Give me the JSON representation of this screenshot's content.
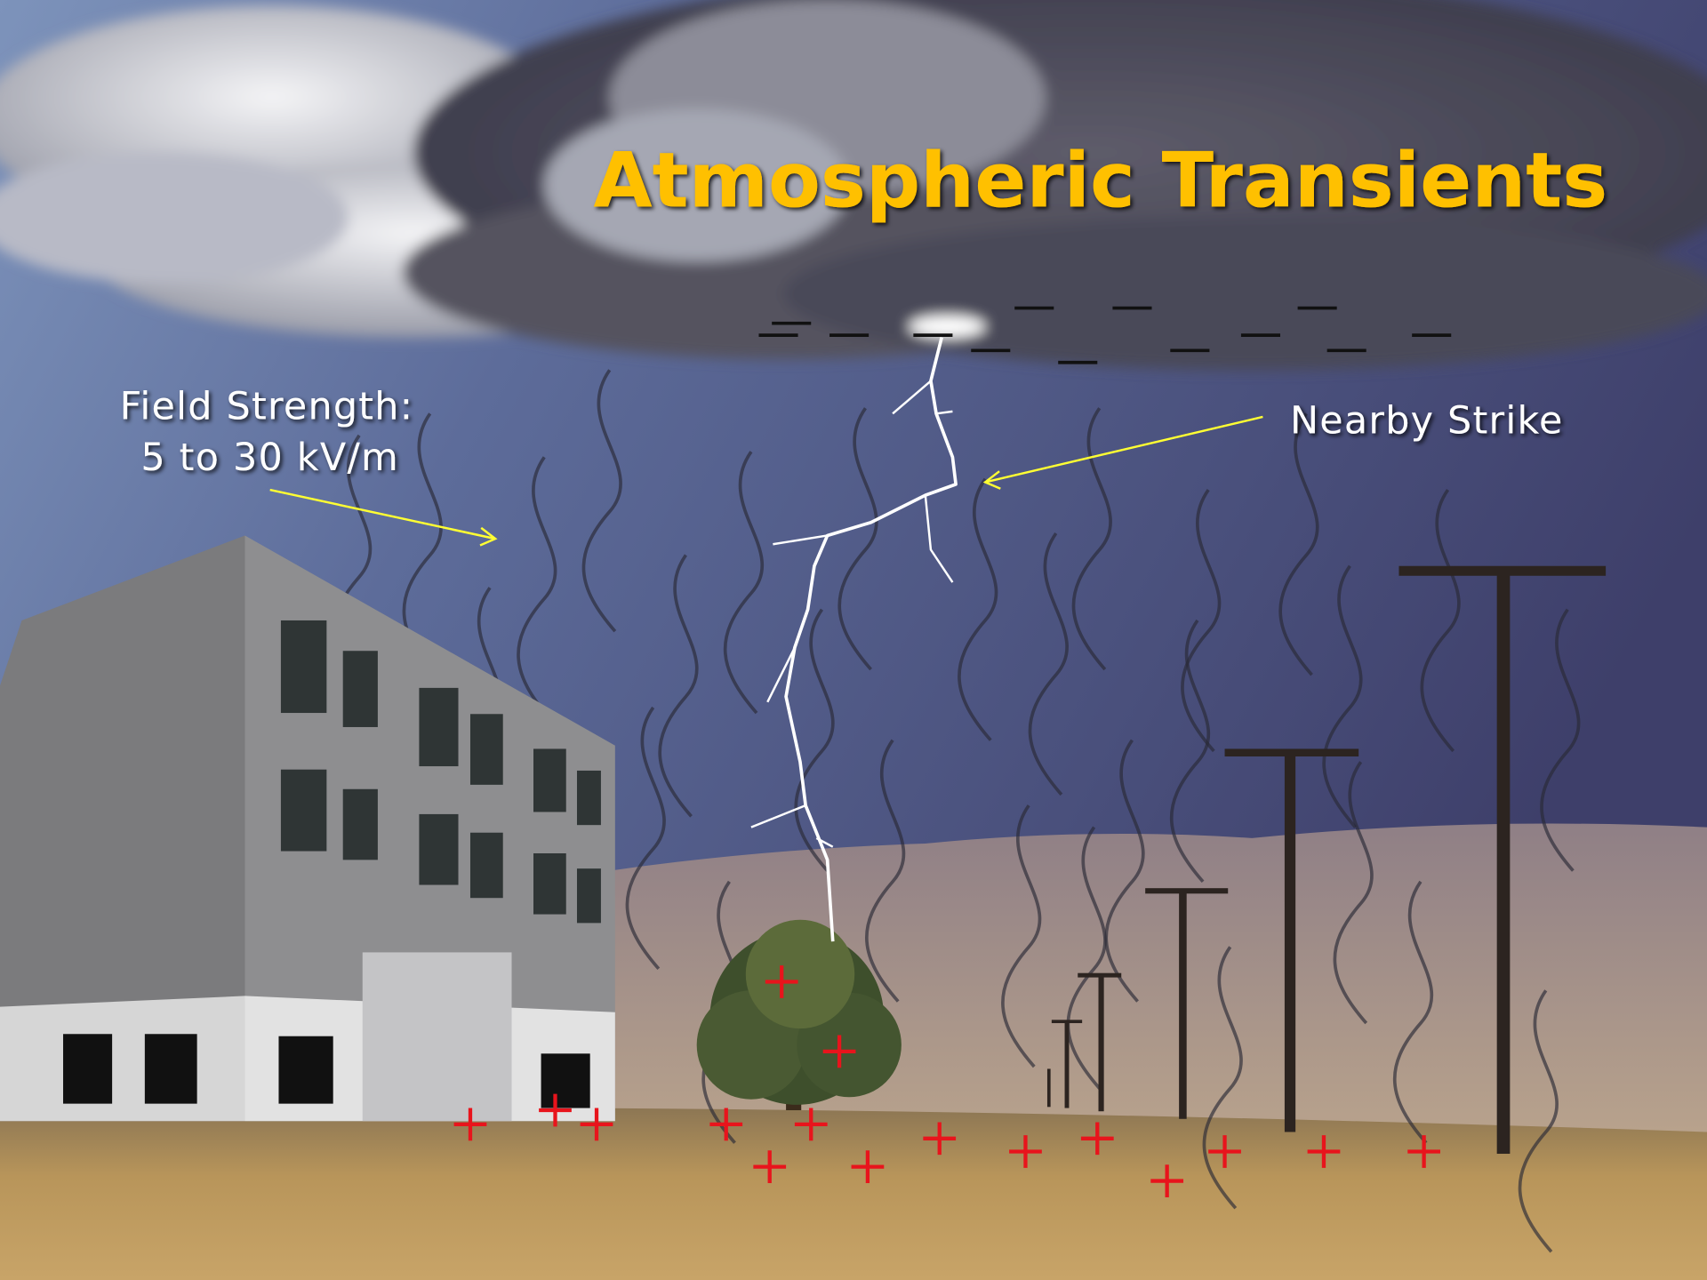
{
  "title": "Atmospheric Transients",
  "annotations": {
    "field_strength": {
      "line1": "Field Strength:",
      "line2": "5 to 30 kV/m"
    },
    "nearby_strike": "Nearby Strike"
  }
}
